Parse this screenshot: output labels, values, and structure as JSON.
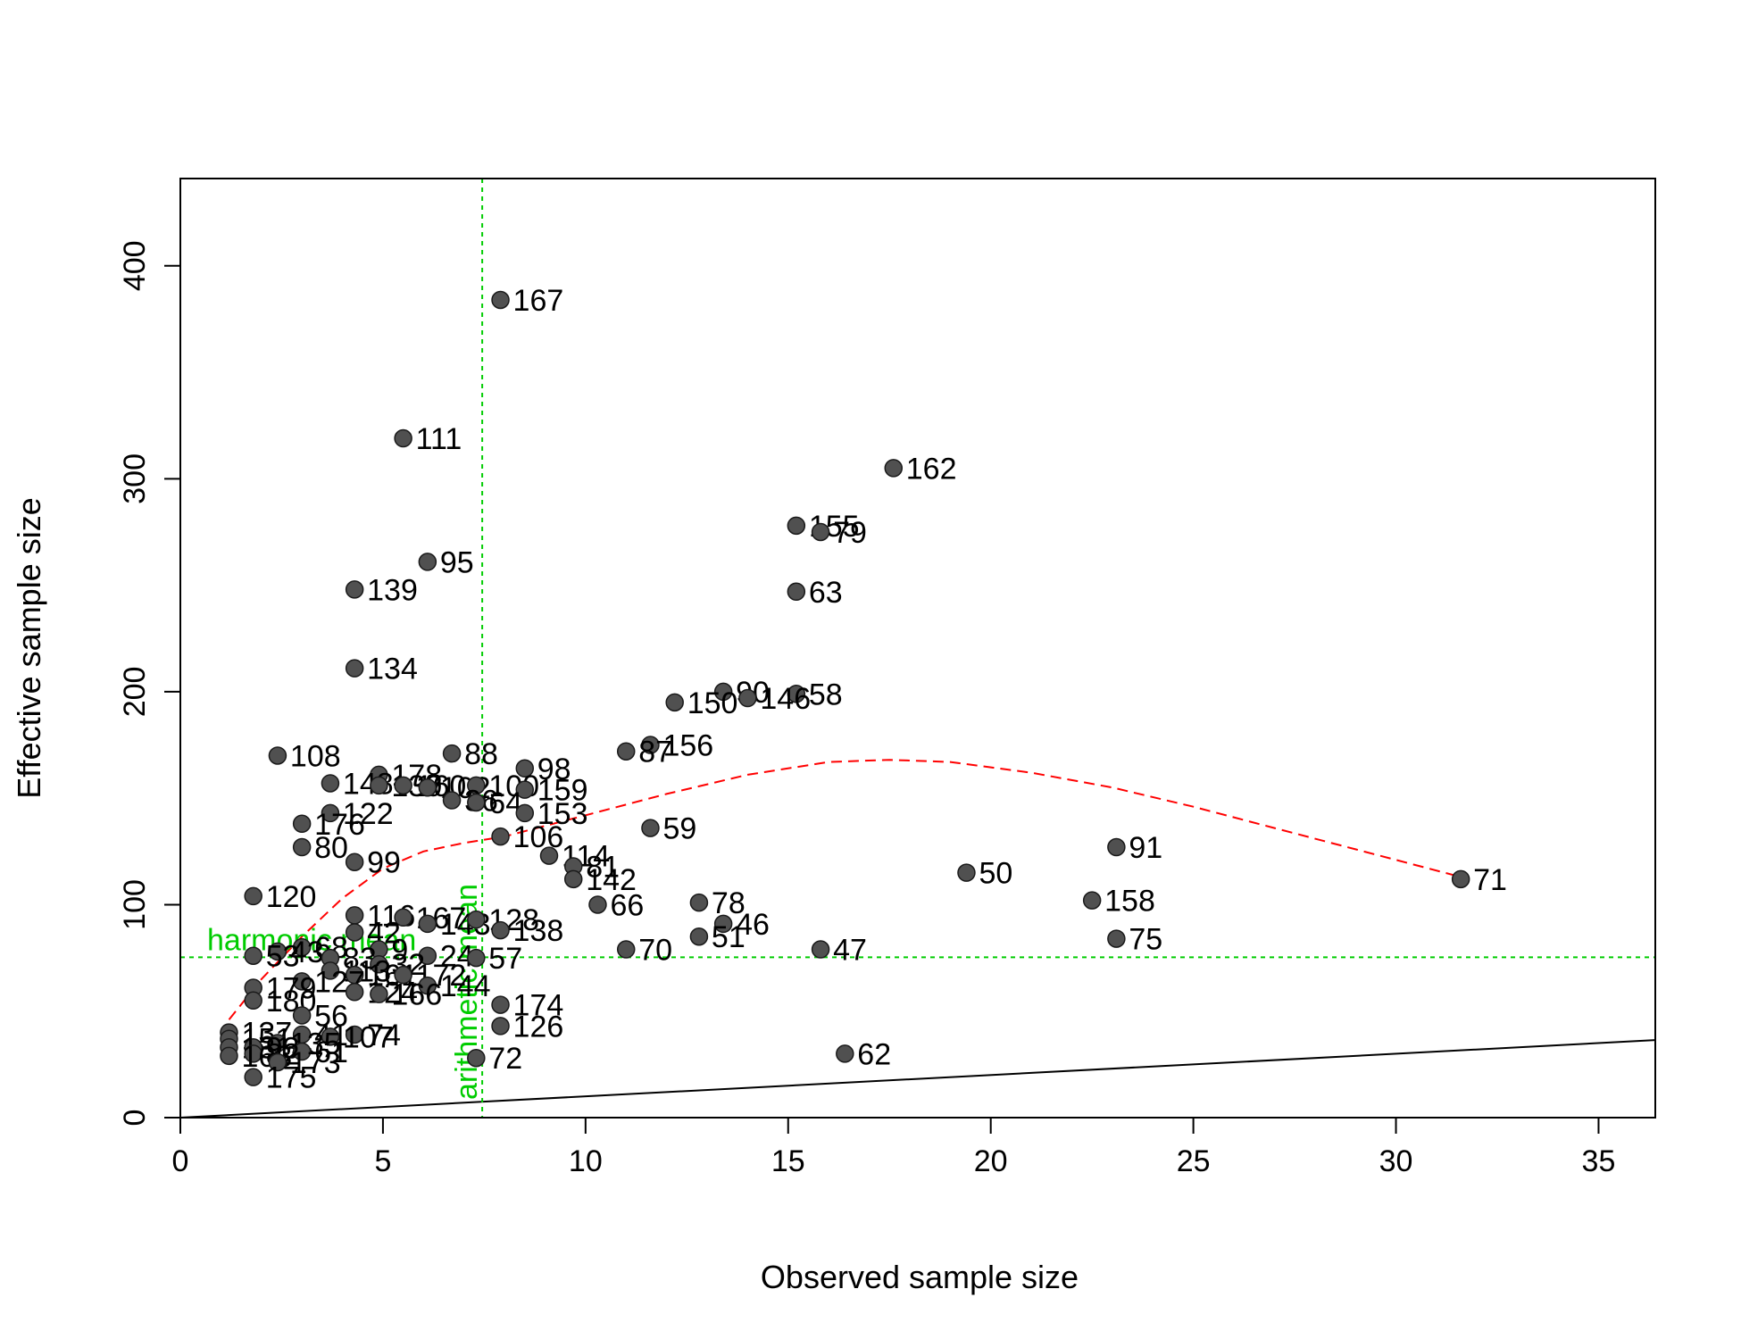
{
  "chart_data": {
    "type": "scatter",
    "title": "",
    "xlabel": "Observed sample size",
    "ylabel": "Effective sample size",
    "xlim": [
      0,
      36.4
    ],
    "ylim": [
      0,
      441
    ],
    "x_ticks": [
      0,
      5,
      10,
      15,
      20,
      25,
      30,
      35
    ],
    "y_ticks": [
      0,
      100,
      200,
      300,
      400
    ],
    "x_tick_labels": [
      "0",
      "5",
      "10",
      "15",
      "20",
      "25",
      "30",
      "35"
    ],
    "y_tick_labels": [
      "0",
      "100",
      "200",
      "300",
      "400"
    ],
    "grid": false,
    "point_color": "#505050",
    "points": [
      {
        "x": 7.9,
        "y": 384,
        "label": "167"
      },
      {
        "x": 5.5,
        "y": 319,
        "label": "111"
      },
      {
        "x": 17.6,
        "y": 305,
        "label": "162"
      },
      {
        "x": 15.2,
        "y": 278,
        "label": "155"
      },
      {
        "x": 15.8,
        "y": 275,
        "label": "79"
      },
      {
        "x": 6.1,
        "y": 261,
        "label": "95"
      },
      {
        "x": 4.3,
        "y": 248,
        "label": "139"
      },
      {
        "x": 15.2,
        "y": 247,
        "label": "63"
      },
      {
        "x": 4.3,
        "y": 211,
        "label": "134"
      },
      {
        "x": 13.4,
        "y": 200,
        "label": "90"
      },
      {
        "x": 15.2,
        "y": 199,
        "label": "58"
      },
      {
        "x": 14.0,
        "y": 197,
        "label": "146"
      },
      {
        "x": 12.2,
        "y": 195,
        "label": "150"
      },
      {
        "x": 11.6,
        "y": 175,
        "label": "156"
      },
      {
        "x": 11.0,
        "y": 172,
        "label": "87"
      },
      {
        "x": 2.4,
        "y": 170,
        "label": "108"
      },
      {
        "x": 6.7,
        "y": 171,
        "label": "88"
      },
      {
        "x": 8.5,
        "y": 164,
        "label": "98"
      },
      {
        "x": 4.9,
        "y": 161,
        "label": "178"
      },
      {
        "x": 3.7,
        "y": 157,
        "label": "148"
      },
      {
        "x": 4.9,
        "y": 156,
        "label": "130"
      },
      {
        "x": 5.5,
        "y": 156,
        "label": "160"
      },
      {
        "x": 6.1,
        "y": 155,
        "label": "102"
      },
      {
        "x": 7.3,
        "y": 156,
        "label": "100"
      },
      {
        "x": 8.5,
        "y": 154,
        "label": "159"
      },
      {
        "x": 6.7,
        "y": 149,
        "label": "36"
      },
      {
        "x": 7.3,
        "y": 148,
        "label": "64"
      },
      {
        "x": 8.5,
        "y": 143,
        "label": "153"
      },
      {
        "x": 3.7,
        "y": 143,
        "label": "122"
      },
      {
        "x": 3.0,
        "y": 138,
        "label": "176"
      },
      {
        "x": 11.6,
        "y": 136,
        "label": "59"
      },
      {
        "x": 7.9,
        "y": 132,
        "label": "106"
      },
      {
        "x": 3.0,
        "y": 127,
        "label": "80"
      },
      {
        "x": 23.1,
        "y": 127,
        "label": "91"
      },
      {
        "x": 9.1,
        "y": 123,
        "label": "114"
      },
      {
        "x": 4.3,
        "y": 120,
        "label": "99"
      },
      {
        "x": 9.7,
        "y": 118,
        "label": "81"
      },
      {
        "x": 19.4,
        "y": 115,
        "label": "50"
      },
      {
        "x": 9.7,
        "y": 112,
        "label": "142"
      },
      {
        "x": 31.6,
        "y": 112,
        "label": "71"
      },
      {
        "x": 1.8,
        "y": 104,
        "label": "120"
      },
      {
        "x": 22.5,
        "y": 102,
        "label": "158"
      },
      {
        "x": 10.3,
        "y": 100,
        "label": "66"
      },
      {
        "x": 12.8,
        "y": 101,
        "label": "78"
      },
      {
        "x": 4.3,
        "y": 95,
        "label": "116"
      },
      {
        "x": 5.5,
        "y": 94,
        "label": "167"
      },
      {
        "x": 6.1,
        "y": 91,
        "label": "143"
      },
      {
        "x": 7.3,
        "y": 93,
        "label": "128"
      },
      {
        "x": 13.4,
        "y": 91,
        "label": "46"
      },
      {
        "x": 7.9,
        "y": 88,
        "label": "138"
      },
      {
        "x": 4.3,
        "y": 87,
        "label": "42"
      },
      {
        "x": 12.8,
        "y": 85,
        "label": "51"
      },
      {
        "x": 23.1,
        "y": 84,
        "label": "75"
      },
      {
        "x": 3.0,
        "y": 80,
        "label": "68"
      },
      {
        "x": 4.9,
        "y": 79,
        "label": "9"
      },
      {
        "x": 2.4,
        "y": 78,
        "label": "43"
      },
      {
        "x": 11.0,
        "y": 79,
        "label": "70"
      },
      {
        "x": 15.8,
        "y": 79,
        "label": "47"
      },
      {
        "x": 1.8,
        "y": 76,
        "label": "53"
      },
      {
        "x": 3.7,
        "y": 75,
        "label": "83"
      },
      {
        "x": 6.1,
        "y": 76,
        "label": "24"
      },
      {
        "x": 7.3,
        "y": 75,
        "label": "57"
      },
      {
        "x": 4.9,
        "y": 72,
        "label": "32"
      },
      {
        "x": 3.7,
        "y": 69,
        "label": "113"
      },
      {
        "x": 4.3,
        "y": 67,
        "label": "161"
      },
      {
        "x": 5.5,
        "y": 67,
        "label": "172"
      },
      {
        "x": 3.0,
        "y": 64,
        "label": "127"
      },
      {
        "x": 6.1,
        "y": 62,
        "label": "144"
      },
      {
        "x": 1.8,
        "y": 61,
        "label": "179"
      },
      {
        "x": 4.3,
        "y": 59,
        "label": "124"
      },
      {
        "x": 4.9,
        "y": 58,
        "label": "166"
      },
      {
        "x": 1.8,
        "y": 55,
        "label": "180"
      },
      {
        "x": 7.9,
        "y": 53,
        "label": "174"
      },
      {
        "x": 3.0,
        "y": 48,
        "label": "56"
      },
      {
        "x": 7.9,
        "y": 43,
        "label": "126"
      },
      {
        "x": 1.2,
        "y": 40,
        "label": "137"
      },
      {
        "x": 3.0,
        "y": 39,
        "label": "41"
      },
      {
        "x": 4.3,
        "y": 39,
        "label": "74"
      },
      {
        "x": 3.7,
        "y": 38,
        "label": "107"
      },
      {
        "x": 1.2,
        "y": 37,
        "label": "151"
      },
      {
        "x": 2.4,
        "y": 35,
        "label": "135"
      },
      {
        "x": 1.8,
        "y": 33,
        "label": "93"
      },
      {
        "x": 1.2,
        "y": 33,
        "label": "131"
      },
      {
        "x": 3.0,
        "y": 31,
        "label": "61"
      },
      {
        "x": 1.8,
        "y": 30,
        "label": "82"
      },
      {
        "x": 16.4,
        "y": 30,
        "label": "62"
      },
      {
        "x": 1.2,
        "y": 29,
        "label": "163"
      },
      {
        "x": 7.3,
        "y": 28,
        "label": "72"
      },
      {
        "x": 2.4,
        "y": 26,
        "label": "173"
      },
      {
        "x": 1.8,
        "y": 19,
        "label": "175"
      }
    ],
    "reference_lines": [
      {
        "label": "harmonic mean",
        "orientation": "horizontal",
        "value": 75.3,
        "color": "#00cc00"
      },
      {
        "label": "arithmetic mean",
        "orientation": "vertical",
        "value": 7.45,
        "color": "#00cc00"
      }
    ],
    "identity_line": {
      "color": "#000000",
      "x": [
        0,
        36.4
      ],
      "y": [
        0,
        36.4
      ]
    },
    "smooth_curve": {
      "color": "#ff0000",
      "style": "dashed",
      "x": [
        1.2,
        2.0,
        3.0,
        4.0,
        5.0,
        6.0,
        7.0,
        8.0,
        10.0,
        12.0,
        14.0,
        16.0,
        17.5,
        19.0,
        21.0,
        23.0,
        25.0,
        27.0,
        29.0,
        31.6
      ],
      "y": [
        46,
        65,
        85,
        103,
        117,
        125,
        129,
        132,
        142,
        152,
        161,
        167,
        168,
        167,
        162,
        155,
        146,
        136,
        126,
        113
      ]
    }
  }
}
